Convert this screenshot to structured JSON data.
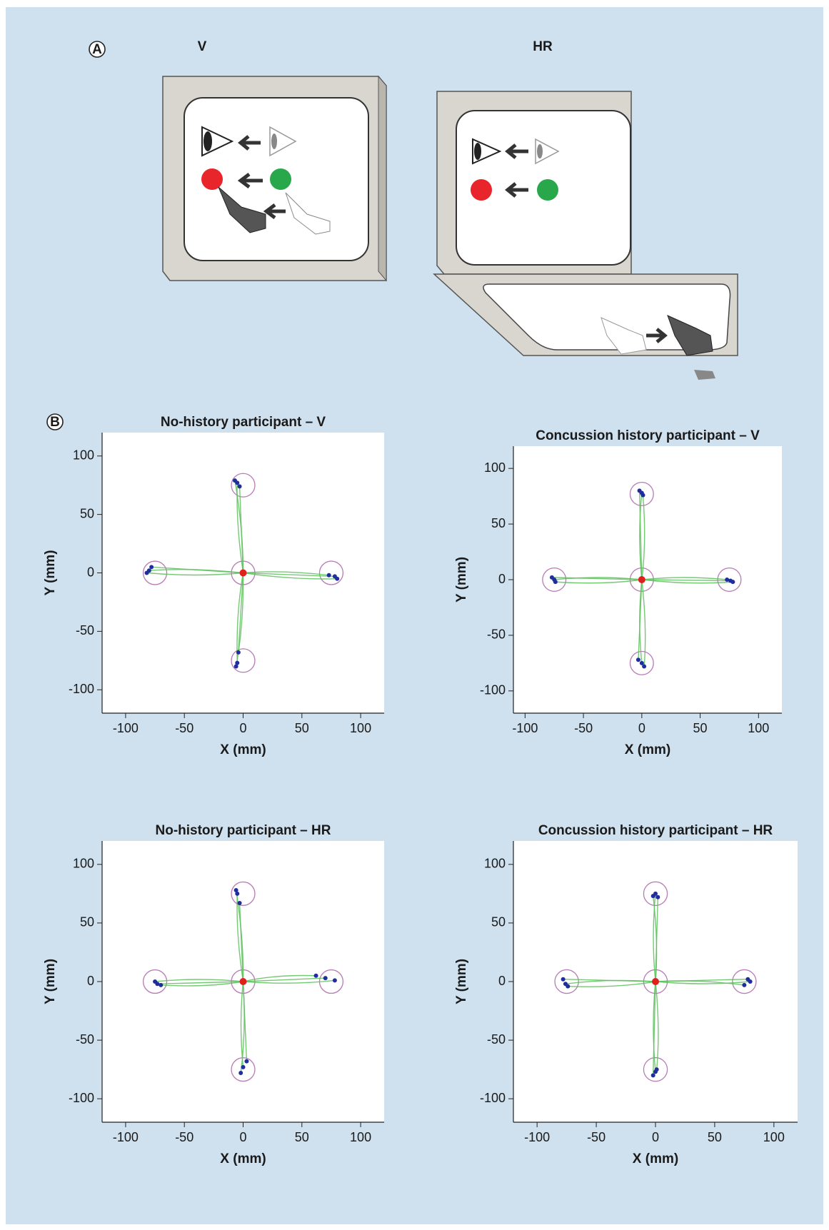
{
  "panel_a": {
    "label": "A",
    "left_title": "V",
    "right_title": "HR"
  },
  "panel_b": {
    "label": "B"
  },
  "chart_data": [
    {
      "type": "scatter",
      "title": "No-history participant – V",
      "xlabel": "X (mm)",
      "ylabel": "Y (mm)",
      "xlim": [
        -120,
        120
      ],
      "ylim": [
        -120,
        120
      ],
      "xticks": [
        -100,
        -50,
        0,
        50,
        100
      ],
      "yticks": [
        -100,
        -50,
        0,
        50,
        100
      ],
      "target_radius": 10,
      "target_color": "#b77bb5",
      "path_color": "#5dbf5d",
      "endpoint_color": "#1f2e9c",
      "center_color": "#e0201c",
      "targets": {
        "x": [
          0,
          0,
          75,
          0,
          -75
        ],
        "y": [
          0,
          75,
          0,
          -75,
          0
        ]
      },
      "endpoints": {
        "x": [
          -5,
          -3,
          -7,
          73,
          78,
          80,
          -5,
          -4,
          -6,
          -80,
          -78,
          -82
        ],
        "y": [
          77,
          74,
          79,
          -2,
          -3,
          -5,
          -77,
          -68,
          -80,
          2,
          5,
          0
        ]
      }
    },
    {
      "type": "scatter",
      "title": "Concussion history participant – V",
      "xlabel": "X (mm)",
      "ylabel": "Y (mm)",
      "xlim": [
        -110,
        120
      ],
      "ylim": [
        -120,
        120
      ],
      "xticks": [
        -100,
        -50,
        0,
        50,
        100
      ],
      "yticks": [
        -100,
        -50,
        0,
        50,
        100
      ],
      "target_radius": 10,
      "target_color": "#b77bb5",
      "path_color": "#5dbf5d",
      "endpoint_color": "#1f2e9c",
      "center_color": "#e0201c",
      "targets": {
        "x": [
          0,
          0,
          75,
          0,
          -75
        ],
        "y": [
          0,
          77,
          0,
          -75,
          0
        ]
      },
      "endpoints": {
        "x": [
          0,
          -2,
          1,
          73,
          76,
          78,
          0,
          -3,
          2,
          -75,
          -77,
          -74
        ],
        "y": [
          78,
          80,
          76,
          0,
          -1,
          -2,
          -75,
          -72,
          -78,
          0,
          2,
          -2
        ]
      }
    },
    {
      "type": "scatter",
      "title": "No-history participant – HR",
      "xlabel": "X (mm)",
      "ylabel": "Y (mm)",
      "xlim": [
        -120,
        120
      ],
      "ylim": [
        -120,
        120
      ],
      "xticks": [
        -100,
        -50,
        0,
        50,
        100
      ],
      "yticks": [
        -100,
        -50,
        0,
        50,
        100
      ],
      "target_radius": 10,
      "target_color": "#b77bb5",
      "path_color": "#5dbf5d",
      "endpoint_color": "#1f2e9c",
      "center_color": "#e0201c",
      "targets": {
        "x": [
          0,
          0,
          75,
          0,
          -75
        ],
        "y": [
          0,
          75,
          0,
          -75,
          0
        ]
      },
      "endpoints": {
        "x": [
          -5,
          -3,
          -6,
          62,
          70,
          78,
          0,
          3,
          -2,
          -75,
          -73,
          -70
        ],
        "y": [
          75,
          67,
          78,
          5,
          3,
          1,
          -73,
          -68,
          -78,
          0,
          -2,
          -3
        ]
      }
    },
    {
      "type": "scatter",
      "title": "Concussion history participant – HR",
      "xlabel": "X (mm)",
      "ylabel": "Y (mm)",
      "xlim": [
        -120,
        120
      ],
      "ylim": [
        -120,
        120
      ],
      "xticks": [
        -100,
        -50,
        0,
        50,
        100
      ],
      "yticks": [
        -100,
        -50,
        0,
        50,
        100
      ],
      "target_radius": 10,
      "target_color": "#b77bb5",
      "path_color": "#5dbf5d",
      "endpoint_color": "#1f2e9c",
      "center_color": "#e0201c",
      "targets": {
        "x": [
          0,
          0,
          75,
          0,
          -75
        ],
        "y": [
          0,
          75,
          0,
          -75,
          0
        ]
      },
      "endpoints": {
        "x": [
          0,
          2,
          -2,
          75,
          78,
          80,
          0,
          -2,
          1,
          -76,
          -78,
          -74
        ],
        "y": [
          75,
          72,
          73,
          -3,
          2,
          0,
          -77,
          -80,
          -75,
          -2,
          2,
          -4
        ]
      }
    }
  ]
}
